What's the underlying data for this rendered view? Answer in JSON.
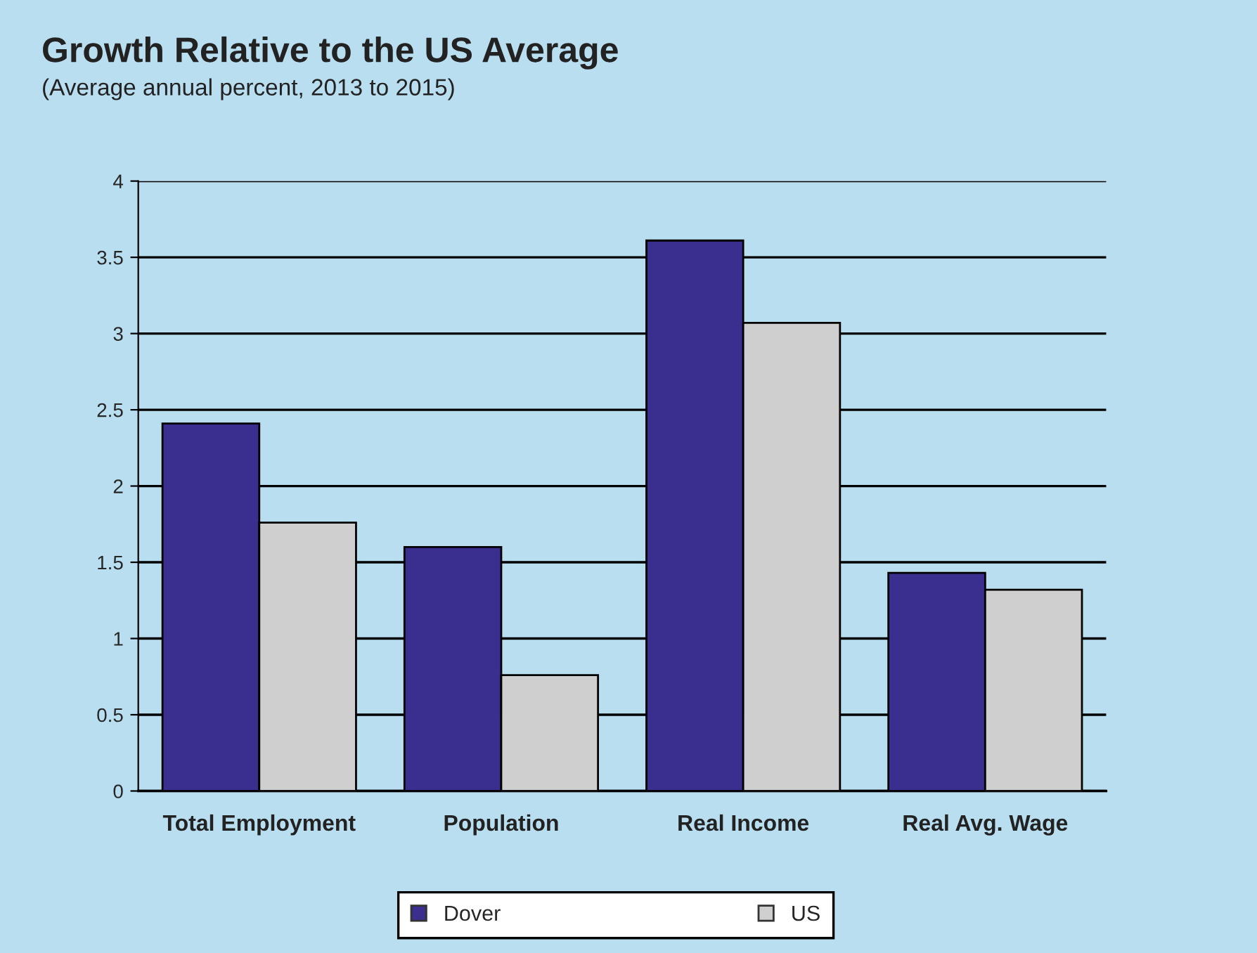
{
  "chart_data": {
    "type": "bar",
    "title": "Growth Relative to the US Average",
    "subtitle": "(Average annual percent, 2013 to 2015)",
    "categories": [
      "Total Employment",
      "Population",
      "Real Income",
      "Real Avg. Wage"
    ],
    "series": [
      {
        "name": "Dover",
        "color": "#3a2f8f",
        "values": [
          2.41,
          1.6,
          3.61,
          1.43
        ]
      },
      {
        "name": "US",
        "color": "#cfcfcf",
        "values": [
          1.76,
          0.76,
          3.07,
          1.32
        ]
      }
    ],
    "ylim": [
      0,
      4
    ],
    "yticks": [
      0,
      0.5,
      1,
      1.5,
      2,
      2.5,
      3,
      3.5,
      4
    ],
    "grid": "y",
    "legend": "bottom"
  }
}
